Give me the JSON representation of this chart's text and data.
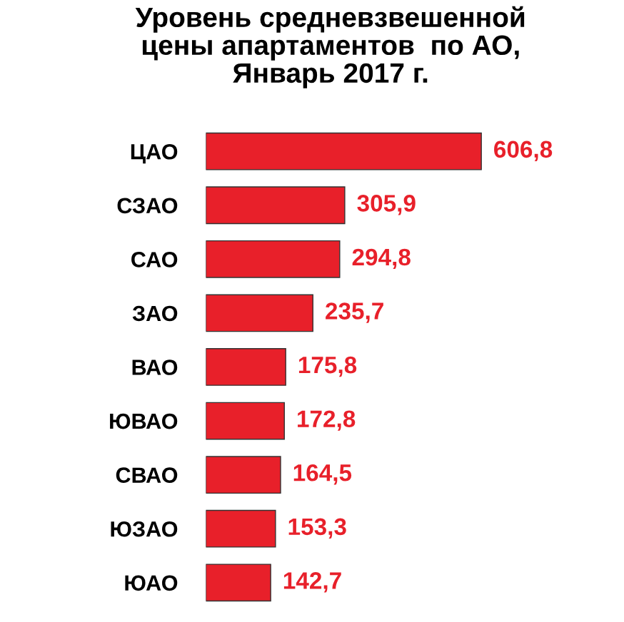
{
  "chart_data": {
    "type": "bar",
    "orientation": "horizontal",
    "title": "Уровень средневзвешенной\nцены апартаментов  по АО,\nЯнварь 2017 г.",
    "categories": [
      "ЦАО",
      "СЗАО",
      "САО",
      "ЗАО",
      "ВАО",
      "ЮВАО",
      "СВАО",
      "ЮЗАО",
      "ЮАО"
    ],
    "values": [
      606.8,
      305.9,
      294.8,
      235.7,
      175.8,
      172.8,
      164.5,
      153.3,
      142.7
    ],
    "value_labels": [
      "606,8",
      "305,9",
      "294,8",
      "235,7",
      "175,8",
      "172,8",
      "164,5",
      "153,3",
      "142,7"
    ],
    "color": "#e8202a",
    "grid": false,
    "legend": false
  }
}
